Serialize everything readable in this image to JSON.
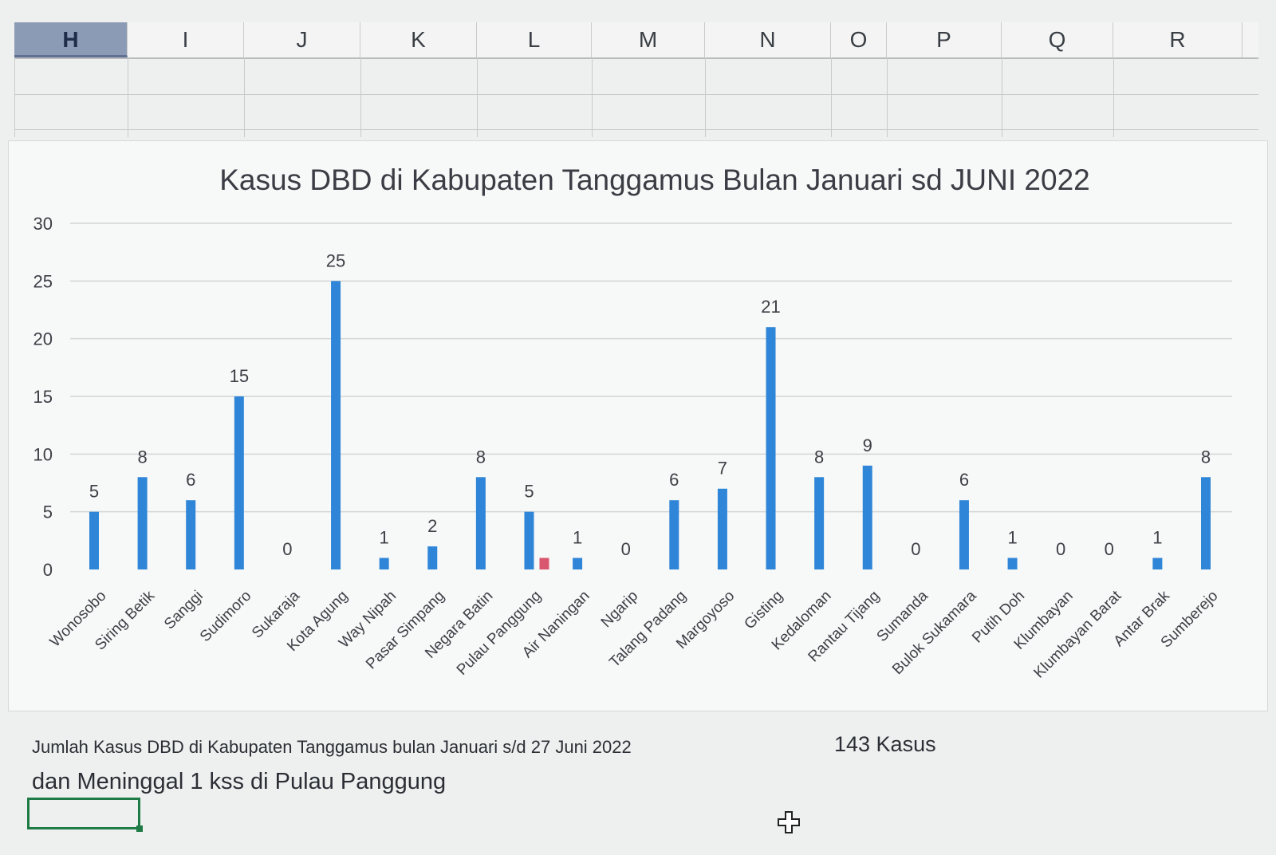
{
  "spreadsheet": {
    "columns": [
      "H",
      "I",
      "J",
      "K",
      "L",
      "M",
      "N",
      "O",
      "P",
      "Q",
      "R"
    ],
    "active_column": "H"
  },
  "chart_data": {
    "type": "bar",
    "title": "Kasus DBD di Kabupaten Tanggamus Bulan Januari sd   JUNI 2022",
    "xlabel": "",
    "ylabel": "",
    "ylim": [
      0,
      30
    ],
    "yticks": [
      0,
      5,
      10,
      15,
      20,
      25,
      30
    ],
    "grid": true,
    "categories": [
      "Wonosobo",
      "Siring Betik",
      "Sanggi",
      "Sudimoro",
      "Sukaraja",
      "Kota Agung",
      "Way Nipah",
      "Pasar Simpang",
      "Negara Batin",
      "Pulau Panggung",
      "Air Naningan",
      "Ngarip",
      "Talang Padang",
      "Margoyoso",
      "Gisting",
      "Kedaloman",
      "Rantau Tijang",
      "Sumanda",
      "Bulok Sukamara",
      "Putih Doh",
      "Klumbayan",
      "Klumbayan Barat",
      "Antar Brak",
      "Sumberejo"
    ],
    "series": [
      {
        "values": [
          5,
          8,
          6,
          15,
          0,
          25,
          1,
          2,
          8,
          5,
          1,
          0,
          6,
          7,
          21,
          8,
          9,
          0,
          6,
          1,
          0,
          0,
          1,
          8
        ],
        "color": "#2f86d8"
      },
      {
        "values": [
          null,
          null,
          null,
          null,
          null,
          null,
          null,
          null,
          null,
          1,
          null,
          null,
          null,
          null,
          null,
          null,
          null,
          null,
          null,
          null,
          null,
          null,
          null,
          null
        ],
        "color": "#d9576e"
      }
    ],
    "data_labels": [
      "5",
      "8",
      "6",
      "15",
      "0",
      "25",
      "1",
      "2",
      "8",
      "5",
      "1",
      "0",
      "6",
      "7",
      "21",
      "8",
      "9",
      "0",
      "6",
      "1",
      "0",
      "0",
      "1",
      "8"
    ]
  },
  "footer": {
    "summary_line": "Jumlah Kasus DBD di Kabupaten Tanggamus bulan Januari s/d 27 Juni 2022",
    "total": "143   Kasus",
    "death_line": "dan Meninggal 1 kss di Pulau Panggung"
  }
}
